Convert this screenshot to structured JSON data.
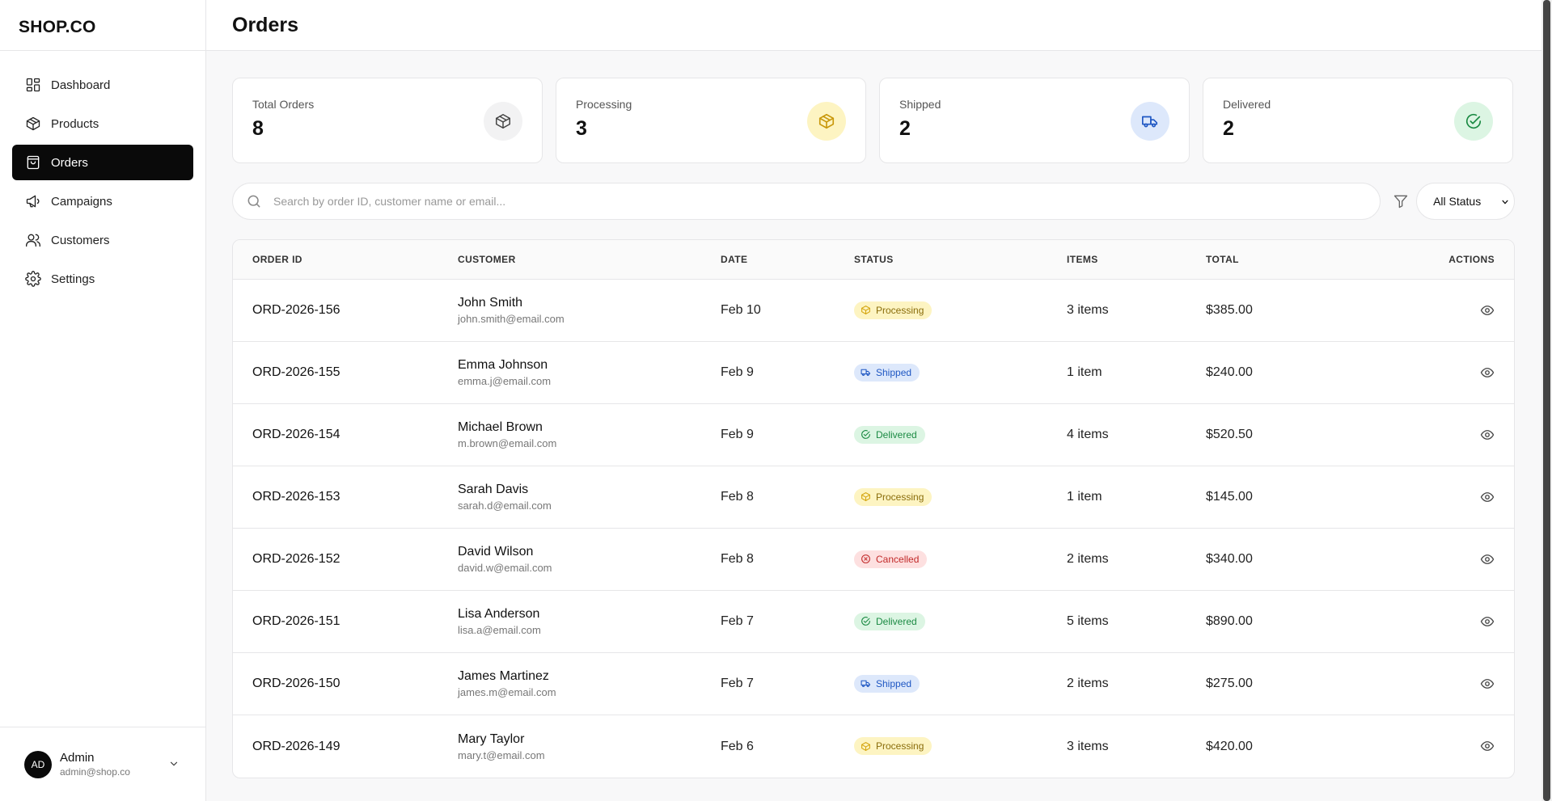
{
  "app": {
    "logo": "SHOP.CO",
    "page_title": "Orders"
  },
  "colors": {
    "processing_bg": "#fdf4c2",
    "processing_fg": "#8a6d0b",
    "processing_icon": "#d4a50f",
    "shipped_bg": "#dde8fb",
    "shipped_fg": "#1f57c3",
    "delivered_bg": "#dcf5e3",
    "delivered_fg": "#1b8a43",
    "cancelled_bg": "#fde0e0",
    "cancelled_fg": "#c22a2a",
    "neutral_bg": "#f2f2f3"
  },
  "sidebar": {
    "items": [
      {
        "label": "Dashboard",
        "icon": "dashboard-icon"
      },
      {
        "label": "Products",
        "icon": "package-icon"
      },
      {
        "label": "Orders",
        "icon": "shopping-bag-icon",
        "active": true
      },
      {
        "label": "Campaigns",
        "icon": "megaphone-icon"
      },
      {
        "label": "Customers",
        "icon": "users-icon"
      },
      {
        "label": "Settings",
        "icon": "gear-icon"
      }
    ],
    "user": {
      "initials": "AD",
      "name": "Admin",
      "email": "admin@shop.co"
    }
  },
  "stats": [
    {
      "label": "Total Orders",
      "value": "8",
      "icon": "package-icon"
    },
    {
      "label": "Processing",
      "value": "3",
      "icon": "package-icon"
    },
    {
      "label": "Shipped",
      "value": "2",
      "icon": "truck-icon"
    },
    {
      "label": "Delivered",
      "value": "2",
      "icon": "check-circle-icon"
    }
  ],
  "search": {
    "placeholder": "Search by order ID, customer name or email...",
    "value": ""
  },
  "filter": {
    "selected": "All Status"
  },
  "table": {
    "headers": {
      "order_id": "ORDER ID",
      "customer": "CUSTOMER",
      "date": "DATE",
      "status": "STATUS",
      "items": "ITEMS",
      "total": "TOTAL",
      "actions": "ACTIONS"
    },
    "rows": [
      {
        "id": "ORD-2026-156",
        "name": "John Smith",
        "email": "john.smith@email.com",
        "date": "Feb 10",
        "status": "Processing",
        "items": "3 items",
        "total": "$385.00"
      },
      {
        "id": "ORD-2026-155",
        "name": "Emma Johnson",
        "email": "emma.j@email.com",
        "date": "Feb 9",
        "status": "Shipped",
        "items": "1 item",
        "total": "$240.00"
      },
      {
        "id": "ORD-2026-154",
        "name": "Michael Brown",
        "email": "m.brown@email.com",
        "date": "Feb 9",
        "status": "Delivered",
        "items": "4 items",
        "total": "$520.50"
      },
      {
        "id": "ORD-2026-153",
        "name": "Sarah Davis",
        "email": "sarah.d@email.com",
        "date": "Feb 8",
        "status": "Processing",
        "items": "1 item",
        "total": "$145.00"
      },
      {
        "id": "ORD-2026-152",
        "name": "David Wilson",
        "email": "david.w@email.com",
        "date": "Feb 8",
        "status": "Cancelled",
        "items": "2 items",
        "total": "$340.00"
      },
      {
        "id": "ORD-2026-151",
        "name": "Lisa Anderson",
        "email": "lisa.a@email.com",
        "date": "Feb 7",
        "status": "Delivered",
        "items": "5 items",
        "total": "$890.00"
      },
      {
        "id": "ORD-2026-150",
        "name": "James Martinez",
        "email": "james.m@email.com",
        "date": "Feb 7",
        "status": "Shipped",
        "items": "2 items",
        "total": "$275.00"
      },
      {
        "id": "ORD-2026-149",
        "name": "Mary Taylor",
        "email": "mary.t@email.com",
        "date": "Feb 6",
        "status": "Processing",
        "items": "3 items",
        "total": "$420.00"
      }
    ]
  }
}
